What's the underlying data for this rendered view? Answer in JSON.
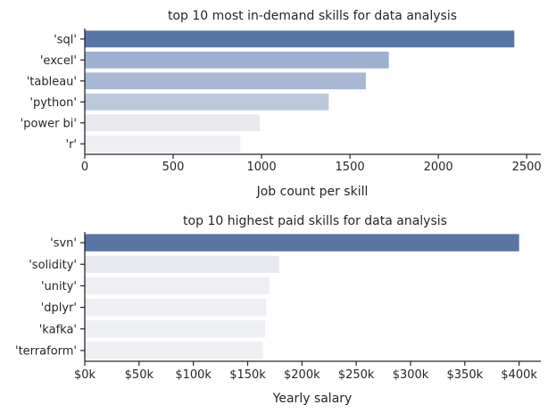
{
  "chart_data": [
    {
      "type": "bar",
      "orientation": "horizontal",
      "title": "top 10 most in-demand skills for data analysis",
      "xlabel": "Job count per skill",
      "ylabel": "",
      "categories": [
        "'sql'",
        "'excel'",
        "'tableau'",
        "'python'",
        "'power bi'",
        "'r'"
      ],
      "values": [
        2430,
        1720,
        1590,
        1380,
        990,
        880
      ],
      "xlim": [
        0,
        2550
      ],
      "xticks": [
        0,
        500,
        1000,
        1500,
        2000,
        2500
      ],
      "xtick_labels": [
        "0",
        "500",
        "1000",
        "1500",
        "2000",
        "2500"
      ],
      "colors": [
        "#5975a4",
        "#9eb0d0",
        "#a7b7d4",
        "#bcc8dc",
        "#e8e9ee",
        "#eeeff2"
      ],
      "grid": false,
      "legend": "none"
    },
    {
      "type": "bar",
      "orientation": "horizontal",
      "title": "top 10 highest paid skills for data analysis",
      "xlabel": "Yearly salary",
      "ylabel": "",
      "categories": [
        "'svn'",
        "'solidity'",
        "'unity'",
        "'dplyr'",
        "'kafka'",
        "'terraform'"
      ],
      "values": [
        400000,
        179000,
        170000,
        167000,
        166000,
        164000
      ],
      "xlim": [
        0,
        420000
      ],
      "xticks": [
        0,
        50000,
        100000,
        150000,
        200000,
        250000,
        300000,
        350000,
        400000
      ],
      "xtick_labels": [
        "$0k",
        "$50k",
        "$100k",
        "$150k",
        "$200k",
        "$250k",
        "$300k",
        "$350k",
        "$400k"
      ],
      "colors": [
        "#5975a4",
        "#e8e9ee",
        "#eeeff2",
        "#eeeff2",
        "#eeeff2",
        "#eeeff2"
      ],
      "grid": false,
      "legend": "none"
    }
  ]
}
